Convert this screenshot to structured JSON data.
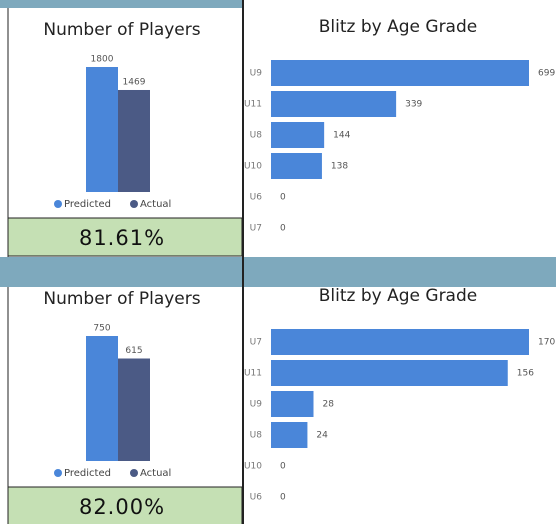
{
  "chart_data": [
    {
      "type": "bar",
      "title": "Number of Players",
      "series": [
        {
          "name": "Predicted",
          "color": "#4a86d9",
          "values": [
            1800
          ]
        },
        {
          "name": "Actual",
          "color": "#4b5a85",
          "values": [
            1469
          ]
        }
      ]
    },
    {
      "type": "card",
      "value": 81.61,
      "value_label": "81.61%"
    },
    {
      "type": "hbar",
      "title": "Blitz by Age Grade",
      "color": "#4a86d9",
      "categories": [
        "U9",
        "U11",
        "U8",
        "U10",
        "U6",
        "U7"
      ],
      "values": [
        699,
        339,
        144,
        138,
        0,
        0
      ]
    },
    {
      "type": "bar",
      "title": "Number of Players",
      "series": [
        {
          "name": "Predicted",
          "color": "#4a86d9",
          "values": [
            750
          ]
        },
        {
          "name": "Actual",
          "color": "#4b5a85",
          "values": [
            615
          ]
        }
      ]
    },
    {
      "type": "card",
      "value": 82.0,
      "value_label": "82.00%"
    },
    {
      "type": "hbar",
      "title": "Blitz by Age Grade",
      "color": "#4a86d9",
      "categories": [
        "U7",
        "U11",
        "U9",
        "U8",
        "U10",
        "U6"
      ],
      "values": [
        170,
        156,
        28,
        24,
        0,
        0
      ]
    }
  ]
}
